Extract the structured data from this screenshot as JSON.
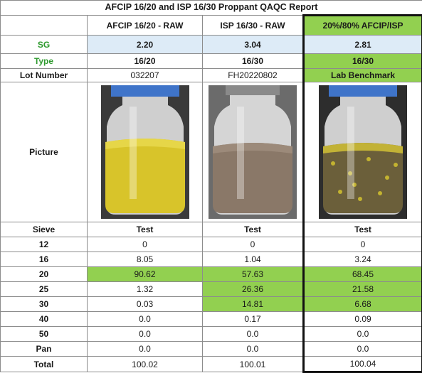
{
  "colors": {
    "accent_green": "#92d050",
    "sg_blue": "#ddebf7",
    "label_green": "#2e9a2e"
  },
  "report": {
    "title": "AFCIP 16/20 and ISP 16/30 Proppant QAQC Report",
    "columns": [
      "AFCIP 16/20 - RAW",
      "ISP 16/30 - RAW",
      "20%/80% AFCIP/ISP"
    ],
    "sg": {
      "label": "SG",
      "values": [
        "2.20",
        "3.04",
        "2.81"
      ]
    },
    "type": {
      "label": "Type",
      "values": [
        "16/20",
        "16/30",
        "16/30"
      ]
    },
    "lot": {
      "label": "Lot Number",
      "values": [
        "032207",
        "FH20220802",
        "Lab Benchmark"
      ]
    },
    "picture": {
      "label": "Picture",
      "images": [
        "jar-yellow-proppant",
        "jar-brown-proppant",
        "jar-mixed-proppant"
      ]
    },
    "sieve": {
      "label": "Sieve",
      "test_labels": [
        "Test",
        "Test",
        "Test"
      ],
      "rows": [
        {
          "size": "12",
          "values": [
            "0",
            "0",
            "0"
          ]
        },
        {
          "size": "16",
          "values": [
            "8.05",
            "1.04",
            "3.24"
          ]
        },
        {
          "size": "20",
          "values": [
            "90.62",
            "57.63",
            "68.45"
          ]
        },
        {
          "size": "25",
          "values": [
            "1.32",
            "26.36",
            "21.58"
          ]
        },
        {
          "size": "30",
          "values": [
            "0.03",
            "14.81",
            "6.68"
          ]
        },
        {
          "size": "40",
          "values": [
            "0.0",
            "0.17",
            "0.09"
          ]
        },
        {
          "size": "50",
          "values": [
            "0.0",
            "0.0",
            "0.0"
          ]
        },
        {
          "size": "Pan",
          "values": [
            "0.0",
            "0.0",
            "0.0"
          ]
        },
        {
          "size": "Total",
          "values": [
            "100.02",
            "100.01",
            "100.04"
          ]
        }
      ]
    }
  }
}
